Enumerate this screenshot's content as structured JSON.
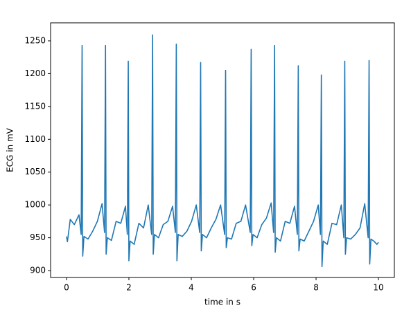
{
  "chart_data": {
    "type": "line",
    "x_label": "time in s",
    "y_label": "ECG in mV",
    "color": "#1f77b4",
    "xlim": [
      -0.51,
      10.51
    ],
    "ylim": [
      889.5,
      1277.4
    ],
    "xticks": [
      0,
      2,
      4,
      6,
      8,
      10
    ],
    "yticks": [
      900,
      950,
      1000,
      1050,
      1100,
      1150,
      1200,
      1250
    ],
    "x": [
      0,
      0.03,
      0.12,
      0.25,
      0.4,
      0.47,
      0.5,
      0.52,
      0.56,
      0.69,
      0.84,
      0.99,
      1.14,
      1.22,
      1.25,
      1.27,
      1.31,
      1.44,
      1.59,
      1.74,
      1.89,
      1.95,
      1.98,
      2.0,
      2.04,
      2.17,
      2.32,
      2.47,
      2.62,
      2.73,
      2.76,
      2.78,
      2.82,
      2.95,
      3.1,
      3.25,
      3.4,
      3.49,
      3.52,
      3.54,
      3.58,
      3.71,
      3.86,
      4.01,
      4.16,
      4.27,
      4.3,
      4.32,
      4.36,
      4.49,
      4.64,
      4.79,
      4.94,
      5.07,
      5.1,
      5.12,
      5.16,
      5.29,
      5.44,
      5.59,
      5.74,
      5.89,
      5.92,
      5.94,
      5.98,
      6.11,
      6.26,
      6.41,
      6.56,
      6.64,
      6.67,
      6.69,
      6.73,
      6.86,
      7.01,
      7.16,
      7.31,
      7.4,
      7.43,
      7.45,
      7.49,
      7.62,
      7.77,
      7.92,
      8.07,
      8.14,
      8.17,
      8.19,
      8.23,
      8.36,
      8.51,
      8.66,
      8.81,
      8.89,
      8.92,
      8.94,
      8.98,
      9.11,
      9.26,
      9.41,
      9.56,
      9.67,
      9.7,
      9.72,
      9.76,
      9.85,
      9.95,
      10.0
    ],
    "values": [
      952,
      944,
      978,
      970,
      985,
      955,
      1243,
      922,
      952,
      948,
      960,
      975,
      1002,
      958,
      1243,
      925,
      950,
      946,
      975,
      972,
      998,
      955,
      1219,
      915,
      945,
      940,
      972,
      965,
      1000,
      955,
      1259,
      925,
      955,
      950,
      970,
      975,
      998,
      958,
      1245,
      915,
      955,
      952,
      960,
      975,
      1000,
      958,
      1217,
      930,
      955,
      950,
      965,
      978,
      1000,
      955,
      1205,
      935,
      950,
      948,
      972,
      975,
      1000,
      958,
      1237,
      938,
      955,
      950,
      970,
      980,
      1003,
      958,
      1243,
      928,
      950,
      945,
      975,
      972,
      998,
      955,
      1212,
      930,
      948,
      945,
      960,
      975,
      1000,
      955,
      1198,
      906,
      945,
      940,
      972,
      970,
      1000,
      950,
      1219,
      925,
      950,
      948,
      955,
      965,
      1002,
      950,
      1220,
      910,
      948,
      945,
      940,
      943
    ]
  }
}
